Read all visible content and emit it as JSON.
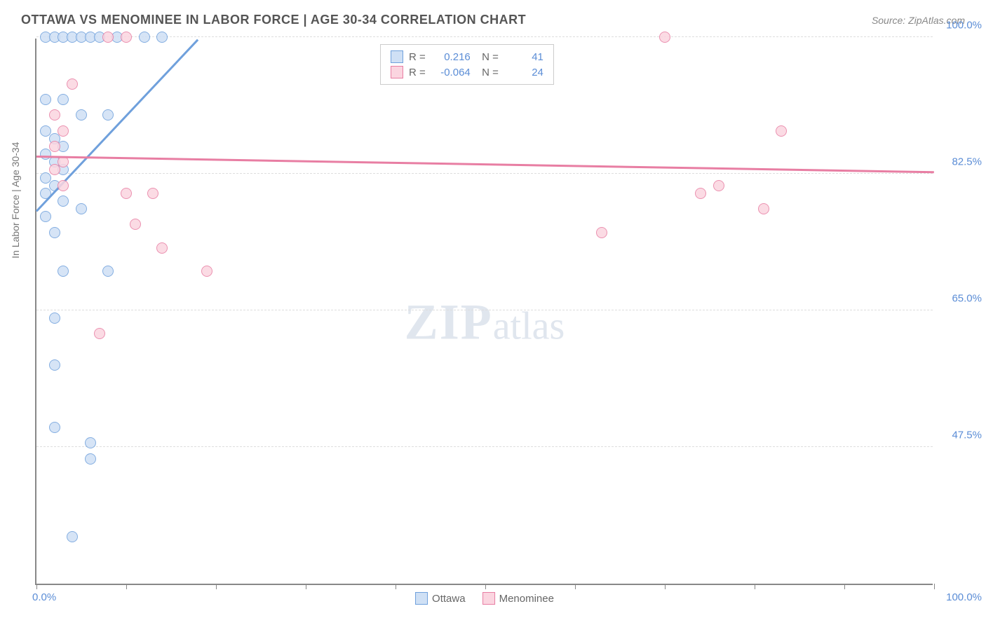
{
  "header": {
    "title": "OTTAWA VS MENOMINEE IN LABOR FORCE | AGE 30-34 CORRELATION CHART",
    "source": "Source: ZipAtlas.com"
  },
  "chart": {
    "type": "scatter",
    "ylabel": "In Labor Force | Age 30-34",
    "xlim": [
      0,
      100
    ],
    "ylim": [
      30,
      100
    ],
    "xtick_positions": [
      0,
      10,
      20,
      30,
      40,
      50,
      60,
      70,
      80,
      90,
      100
    ],
    "ytick_labels": [
      {
        "value": 100.0,
        "label": "100.0%"
      },
      {
        "value": 82.5,
        "label": "82.5%"
      },
      {
        "value": 65.0,
        "label": "65.0%"
      },
      {
        "value": 47.5,
        "label": "47.5%"
      }
    ],
    "x_axis_labels": [
      {
        "value": 0,
        "label": "0.0%"
      },
      {
        "value": 100,
        "label": "100.0%"
      }
    ],
    "grid_color": "#dddddd",
    "background_color": "#ffffff",
    "axis_color": "#888888",
    "label_color": "#5b8dd6",
    "point_radius": 8,
    "series": [
      {
        "name": "Ottawa",
        "fill": "#cfe0f5",
        "stroke": "#6fa0dc",
        "R": "0.216",
        "N": "41",
        "trend": {
          "x1": 0,
          "y1": 78,
          "x2": 18,
          "y2": 100
        },
        "points": [
          [
            1,
            100
          ],
          [
            2,
            100
          ],
          [
            3,
            100
          ],
          [
            4,
            100
          ],
          [
            5,
            100
          ],
          [
            6,
            100
          ],
          [
            7,
            100
          ],
          [
            9,
            100
          ],
          [
            12,
            100
          ],
          [
            14,
            100
          ],
          [
            1,
            92
          ],
          [
            3,
            92
          ],
          [
            5,
            90
          ],
          [
            8,
            90
          ],
          [
            1,
            88
          ],
          [
            2,
            87
          ],
          [
            3,
            86
          ],
          [
            1,
            85
          ],
          [
            2,
            84
          ],
          [
            3,
            83
          ],
          [
            1,
            82
          ],
          [
            2,
            81
          ],
          [
            1,
            80
          ],
          [
            3,
            79
          ],
          [
            5,
            78
          ],
          [
            1,
            77
          ],
          [
            2,
            75
          ],
          [
            3,
            70
          ],
          [
            8,
            70
          ],
          [
            2,
            64
          ],
          [
            2,
            58
          ],
          [
            2,
            50
          ],
          [
            6,
            48
          ],
          [
            6,
            46
          ],
          [
            4,
            36
          ]
        ]
      },
      {
        "name": "Menominee",
        "fill": "#fbd5e0",
        "stroke": "#e87ea3",
        "R": "-0.064",
        "N": "24",
        "trend": {
          "x1": 0,
          "y1": 85,
          "x2": 100,
          "y2": 83
        },
        "points": [
          [
            8,
            100
          ],
          [
            10,
            100
          ],
          [
            4,
            94
          ],
          [
            2,
            90
          ],
          [
            3,
            88
          ],
          [
            2,
            86
          ],
          [
            3,
            84
          ],
          [
            2,
            83
          ],
          [
            3,
            81
          ],
          [
            10,
            80
          ],
          [
            13,
            80
          ],
          [
            11,
            76
          ],
          [
            14,
            73
          ],
          [
            19,
            70
          ],
          [
            7,
            62
          ],
          [
            63,
            75
          ],
          [
            70,
            100
          ],
          [
            74,
            80
          ],
          [
            76,
            81
          ],
          [
            83,
            88
          ],
          [
            81,
            78
          ]
        ]
      }
    ],
    "legend": {
      "rows": [
        {
          "swatch_fill": "#cfe0f5",
          "swatch_stroke": "#6fa0dc",
          "R": "0.216",
          "N": "41"
        },
        {
          "swatch_fill": "#fbd5e0",
          "swatch_stroke": "#e87ea3",
          "R": "-0.064",
          "N": "24"
        }
      ]
    },
    "bottom_legend": [
      {
        "swatch_fill": "#cfe0f5",
        "swatch_stroke": "#6fa0dc",
        "label": "Ottawa"
      },
      {
        "swatch_fill": "#fbd5e0",
        "swatch_stroke": "#e87ea3",
        "label": "Menominee"
      }
    ],
    "watermark": {
      "zip": "ZIP",
      "atlas": "atlas"
    }
  }
}
